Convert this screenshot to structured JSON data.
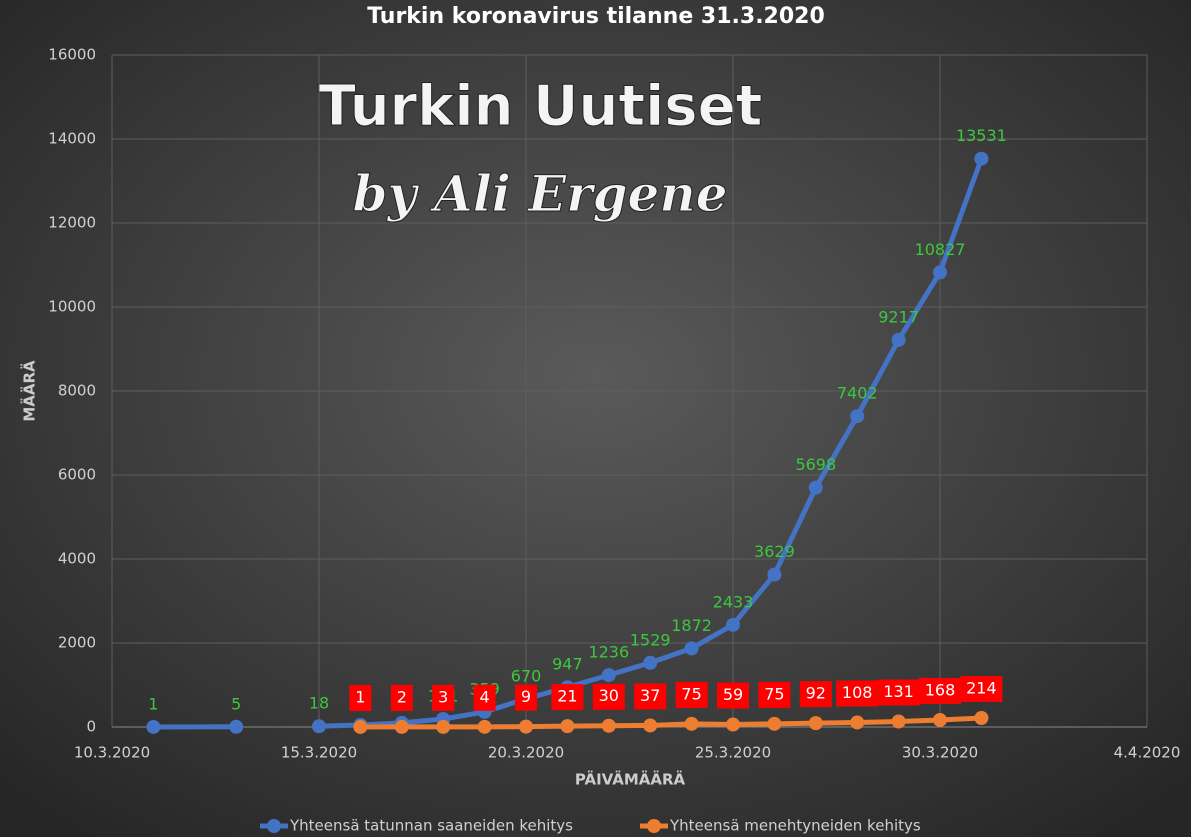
{
  "chart_data": {
    "type": "line",
    "title": "Turkin koronavirus tilanne 31.3.2020",
    "watermark": [
      "Turkin Uutiset",
      "by Ali Ergene"
    ],
    "x_label": "PÄIVÄMÄÄRÄ",
    "y_label": "MÄÄRÄ",
    "x": [
      "11.3.2020",
      "13.3.2020",
      "14.3.2020",
      "15.3.2020",
      "16.3.2020",
      "17.3.2020",
      "18.3.2020",
      "19.3.2020",
      "20.3.2020",
      "21.3.2020",
      "22.3.2020",
      "23.3.2020",
      "24.3.2020",
      "25.3.2020",
      "26.3.2020",
      "27.3.2020",
      "28.3.2020",
      "29.3.2020",
      "30.3.2020",
      "31.3.2020"
    ],
    "series": [
      {
        "name": "Yhteensä tatunnan saaneiden kehitys",
        "color": "#4472c4",
        "label_color": "#3ec63e",
        "values": [
          1,
          5,
          null,
          18,
          47,
          98,
          191,
          359,
          670,
          947,
          1236,
          1529,
          1872,
          2433,
          3629,
          5698,
          7402,
          9217,
          10827,
          13531
        ]
      },
      {
        "name": "Yhteensä menehtyneiden kehitys",
        "color": "#ed7d31",
        "label_color": "#ff0000",
        "values": [
          null,
          null,
          null,
          null,
          1,
          2,
          3,
          4,
          9,
          21,
          30,
          37,
          75,
          59,
          75,
          92,
          108,
          131,
          168,
          214
        ]
      }
    ],
    "xlim": [
      "10.3.2020",
      "4.4.2020"
    ],
    "xticks": [
      "10.3.2020",
      "15.3.2020",
      "20.3.2020",
      "25.3.2020",
      "30.3.2020",
      "4.4.2020"
    ],
    "ylim": [
      0,
      16000
    ],
    "yticks": [
      0,
      2000,
      4000,
      6000,
      8000,
      10000,
      12000,
      14000,
      16000
    ],
    "grid": true,
    "legend": "bottom"
  }
}
